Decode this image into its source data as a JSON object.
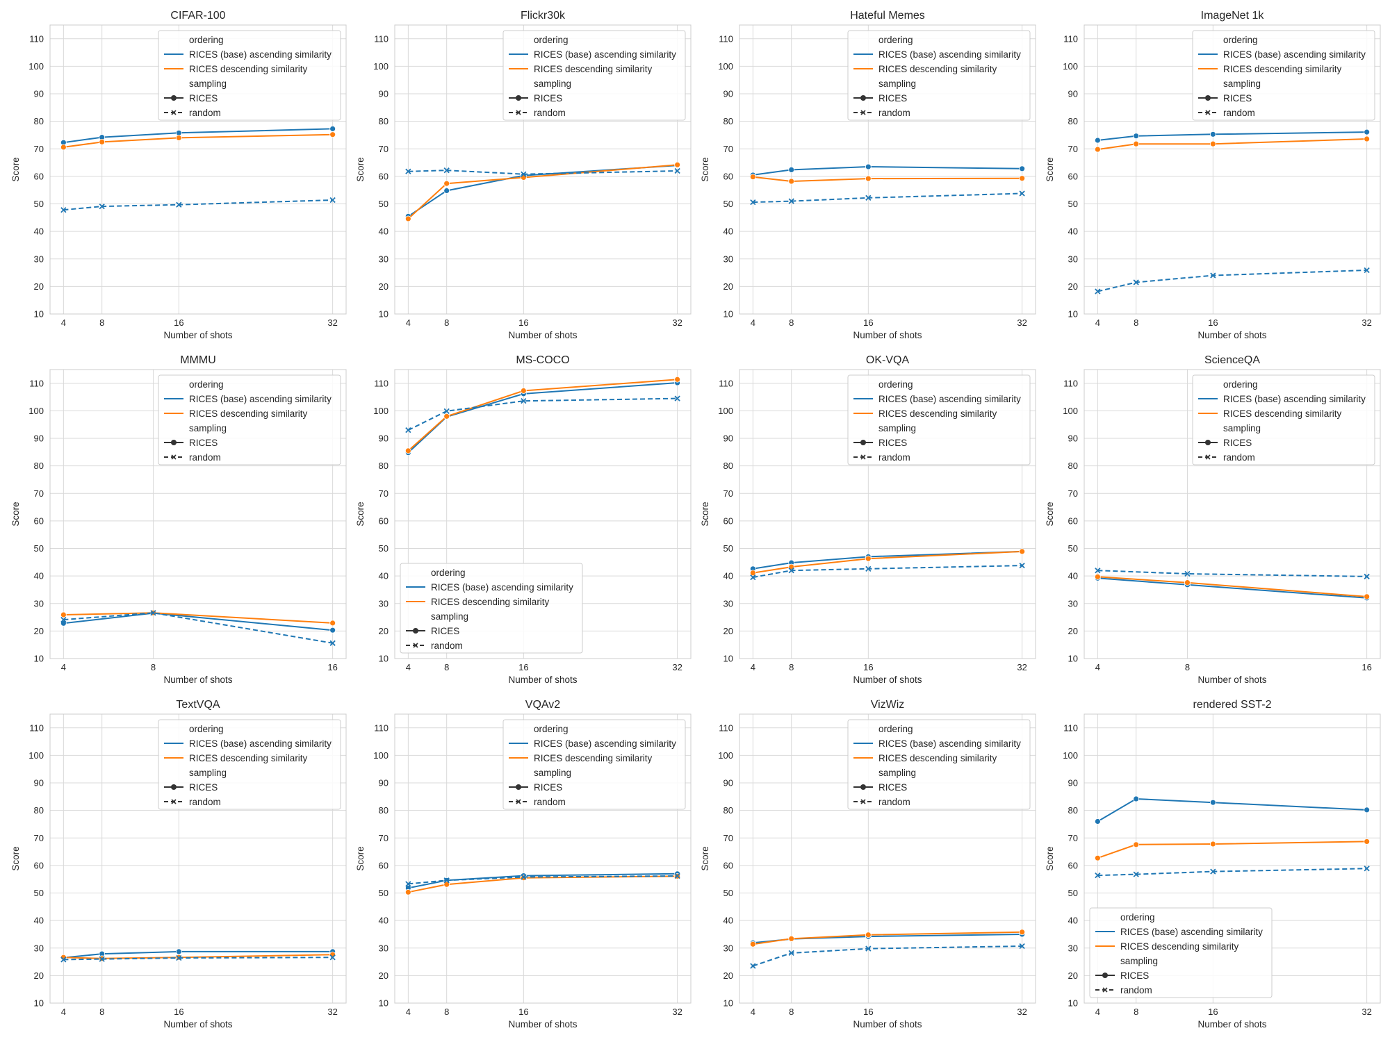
{
  "colors": {
    "base": "#1f77b4",
    "desc": "#ff7f0e",
    "grid": "#d9d9d9",
    "spine": "#cccccc"
  },
  "legend": {
    "ordering_title": "ordering",
    "ordering_items": [
      "RICES (base) ascending similarity",
      "RICES descending similarity"
    ],
    "sampling_title": "sampling",
    "sampling_items": [
      "RICES",
      "random"
    ]
  },
  "chart_data": [
    {
      "type": "line",
      "title": "CIFAR-100",
      "xlabel": "Number of shots",
      "ylabel": "Score",
      "x": [
        4,
        8,
        16,
        32
      ],
      "ylim": [
        10,
        115
      ],
      "legend_position": "top-right",
      "series": [
        {
          "name": "RICES (base) ascending similarity / RICES",
          "values": [
            72.3,
            74.2,
            75.8,
            77.3
          ]
        },
        {
          "name": "RICES descending similarity / RICES",
          "values": [
            70.6,
            72.5,
            74.0,
            75.2
          ]
        },
        {
          "name": "RICES (base) ascending similarity / random",
          "values": [
            47.8,
            49.1,
            49.7,
            51.4
          ]
        }
      ]
    },
    {
      "type": "line",
      "title": "Flickr30k",
      "xlabel": "Number of shots",
      "ylabel": "Score",
      "x": [
        4,
        8,
        16,
        32
      ],
      "ylim": [
        10,
        115
      ],
      "legend_position": "top-right",
      "series": [
        {
          "name": "RICES (base) ascending similarity / RICES",
          "values": [
            45.5,
            54.8,
            60.3,
            64.0
          ]
        },
        {
          "name": "RICES descending similarity / RICES",
          "values": [
            44.6,
            57.4,
            59.6,
            64.2
          ]
        },
        {
          "name": "RICES (base) ascending similarity / random",
          "values": [
            61.8,
            62.2,
            60.8,
            62.0
          ]
        }
      ]
    },
    {
      "type": "line",
      "title": "Hateful Memes",
      "xlabel": "Number of shots",
      "ylabel": "Score",
      "x": [
        4,
        8,
        16,
        32
      ],
      "ylim": [
        10,
        115
      ],
      "legend_position": "top-right",
      "series": [
        {
          "name": "RICES (base) ascending similarity / RICES",
          "values": [
            60.5,
            62.4,
            63.5,
            62.8
          ]
        },
        {
          "name": "RICES descending similarity / RICES",
          "values": [
            59.8,
            58.2,
            59.2,
            59.3
          ]
        },
        {
          "name": "RICES (base) ascending similarity / random",
          "values": [
            50.6,
            51.0,
            52.2,
            53.8
          ]
        }
      ]
    },
    {
      "type": "line",
      "title": "ImageNet 1k",
      "xlabel": "Number of shots",
      "ylabel": "Score",
      "x": [
        4,
        8,
        16,
        32
      ],
      "ylim": [
        10,
        115
      ],
      "legend_position": "top-right",
      "series": [
        {
          "name": "RICES (base) ascending similarity / RICES",
          "values": [
            73.1,
            74.7,
            75.3,
            76.1
          ]
        },
        {
          "name": "RICES descending similarity / RICES",
          "values": [
            69.8,
            71.8,
            71.8,
            73.6
          ]
        },
        {
          "name": "RICES (base) ascending similarity / random",
          "values": [
            18.2,
            21.5,
            24.0,
            25.9
          ]
        }
      ]
    },
    {
      "type": "line",
      "title": "MMMU",
      "xlabel": "Number of shots",
      "ylabel": "Score",
      "x": [
        4,
        8,
        16
      ],
      "ylim": [
        10,
        115
      ],
      "legend_position": "top-right",
      "series": [
        {
          "name": "RICES (base) ascending similarity / RICES",
          "values": [
            22.8,
            26.5,
            20.3
          ]
        },
        {
          "name": "RICES descending similarity / RICES",
          "values": [
            25.9,
            26.6,
            22.9
          ]
        },
        {
          "name": "RICES (base) ascending similarity / random",
          "values": [
            24.1,
            26.6,
            15.6
          ]
        }
      ]
    },
    {
      "type": "line",
      "title": "MS-COCO",
      "xlabel": "Number of shots",
      "ylabel": "Score",
      "x": [
        4,
        8,
        16,
        32
      ],
      "ylim": [
        10,
        115
      ],
      "legend_position": "lower-left",
      "series": [
        {
          "name": "RICES (base) ascending similarity / RICES",
          "values": [
            84.8,
            97.8,
            106.2,
            110.2
          ]
        },
        {
          "name": "RICES descending similarity / RICES",
          "values": [
            85.5,
            98.0,
            107.3,
            111.4
          ]
        },
        {
          "name": "RICES (base) ascending similarity / random",
          "values": [
            93.0,
            99.9,
            103.6,
            104.5
          ]
        }
      ]
    },
    {
      "type": "line",
      "title": "OK-VQA",
      "xlabel": "Number of shots",
      "ylabel": "Score",
      "x": [
        4,
        8,
        16,
        32
      ],
      "ylim": [
        10,
        115
      ],
      "legend_position": "top-right",
      "series": [
        {
          "name": "RICES (base) ascending similarity / RICES",
          "values": [
            42.6,
            44.8,
            47.0,
            48.9
          ]
        },
        {
          "name": "RICES descending similarity / RICES",
          "values": [
            41.1,
            43.3,
            46.3,
            48.9
          ]
        },
        {
          "name": "RICES (base) ascending similarity / random",
          "values": [
            39.5,
            42.0,
            42.6,
            43.8
          ]
        }
      ]
    },
    {
      "type": "line",
      "title": "ScienceQA",
      "xlabel": "Number of shots",
      "ylabel": "Score",
      "x": [
        4,
        8,
        16
      ],
      "ylim": [
        10,
        115
      ],
      "legend_position": "top-right",
      "series": [
        {
          "name": "RICES (base) ascending similarity / RICES",
          "values": [
            39.2,
            36.8,
            32.0
          ]
        },
        {
          "name": "RICES descending similarity / RICES",
          "values": [
            39.7,
            37.6,
            32.5
          ]
        },
        {
          "name": "RICES (base) ascending similarity / random",
          "values": [
            42.0,
            40.8,
            39.8
          ]
        }
      ]
    },
    {
      "type": "line",
      "title": "TextVQA",
      "xlabel": "Number of shots",
      "ylabel": "Score",
      "x": [
        4,
        8,
        16,
        32
      ],
      "ylim": [
        10,
        115
      ],
      "legend_position": "top-right",
      "series": [
        {
          "name": "RICES (base) ascending similarity / RICES",
          "values": [
            26.5,
            27.9,
            28.7,
            28.7
          ]
        },
        {
          "name": "RICES descending similarity / RICES",
          "values": [
            26.6,
            26.2,
            26.6,
            27.6
          ]
        },
        {
          "name": "RICES (base) ascending similarity / random",
          "values": [
            25.8,
            26.0,
            26.4,
            26.6
          ]
        }
      ]
    },
    {
      "type": "line",
      "title": "VQAv2",
      "xlabel": "Number of shots",
      "ylabel": "Score",
      "x": [
        4,
        8,
        16,
        32
      ],
      "ylim": [
        10,
        115
      ],
      "legend_position": "top-right",
      "series": [
        {
          "name": "RICES (base) ascending similarity / RICES",
          "values": [
            51.8,
            54.6,
            56.3,
            57.0
          ]
        },
        {
          "name": "RICES descending similarity / RICES",
          "values": [
            50.3,
            53.1,
            55.5,
            56.1
          ]
        },
        {
          "name": "RICES (base) ascending similarity / random",
          "values": [
            53.3,
            54.6,
            55.8,
            56.2
          ]
        }
      ]
    },
    {
      "type": "line",
      "title": "VizWiz",
      "xlabel": "Number of shots",
      "ylabel": "Score",
      "x": [
        4,
        8,
        16,
        32
      ],
      "ylim": [
        10,
        115
      ],
      "legend_position": "top-right",
      "series": [
        {
          "name": "RICES (base) ascending similarity / RICES",
          "values": [
            31.9,
            33.3,
            34.2,
            35.0
          ]
        },
        {
          "name": "RICES descending similarity / RICES",
          "values": [
            31.4,
            33.4,
            34.8,
            35.8
          ]
        },
        {
          "name": "RICES (base) ascending similarity / random",
          "values": [
            23.5,
            28.2,
            29.8,
            30.7
          ]
        }
      ]
    },
    {
      "type": "line",
      "title": "rendered SST-2",
      "xlabel": "Number of shots",
      "ylabel": "Score",
      "x": [
        4,
        8,
        16,
        32
      ],
      "ylim": [
        10,
        115
      ],
      "legend_position": "lower-left",
      "series": [
        {
          "name": "RICES (base) ascending similarity / RICES",
          "values": [
            76.0,
            84.2,
            82.9,
            80.2
          ]
        },
        {
          "name": "RICES descending similarity / RICES",
          "values": [
            62.7,
            67.6,
            67.8,
            68.7
          ]
        },
        {
          "name": "RICES (base) ascending similarity / random",
          "values": [
            56.4,
            56.8,
            57.8,
            58.9
          ]
        }
      ]
    }
  ]
}
